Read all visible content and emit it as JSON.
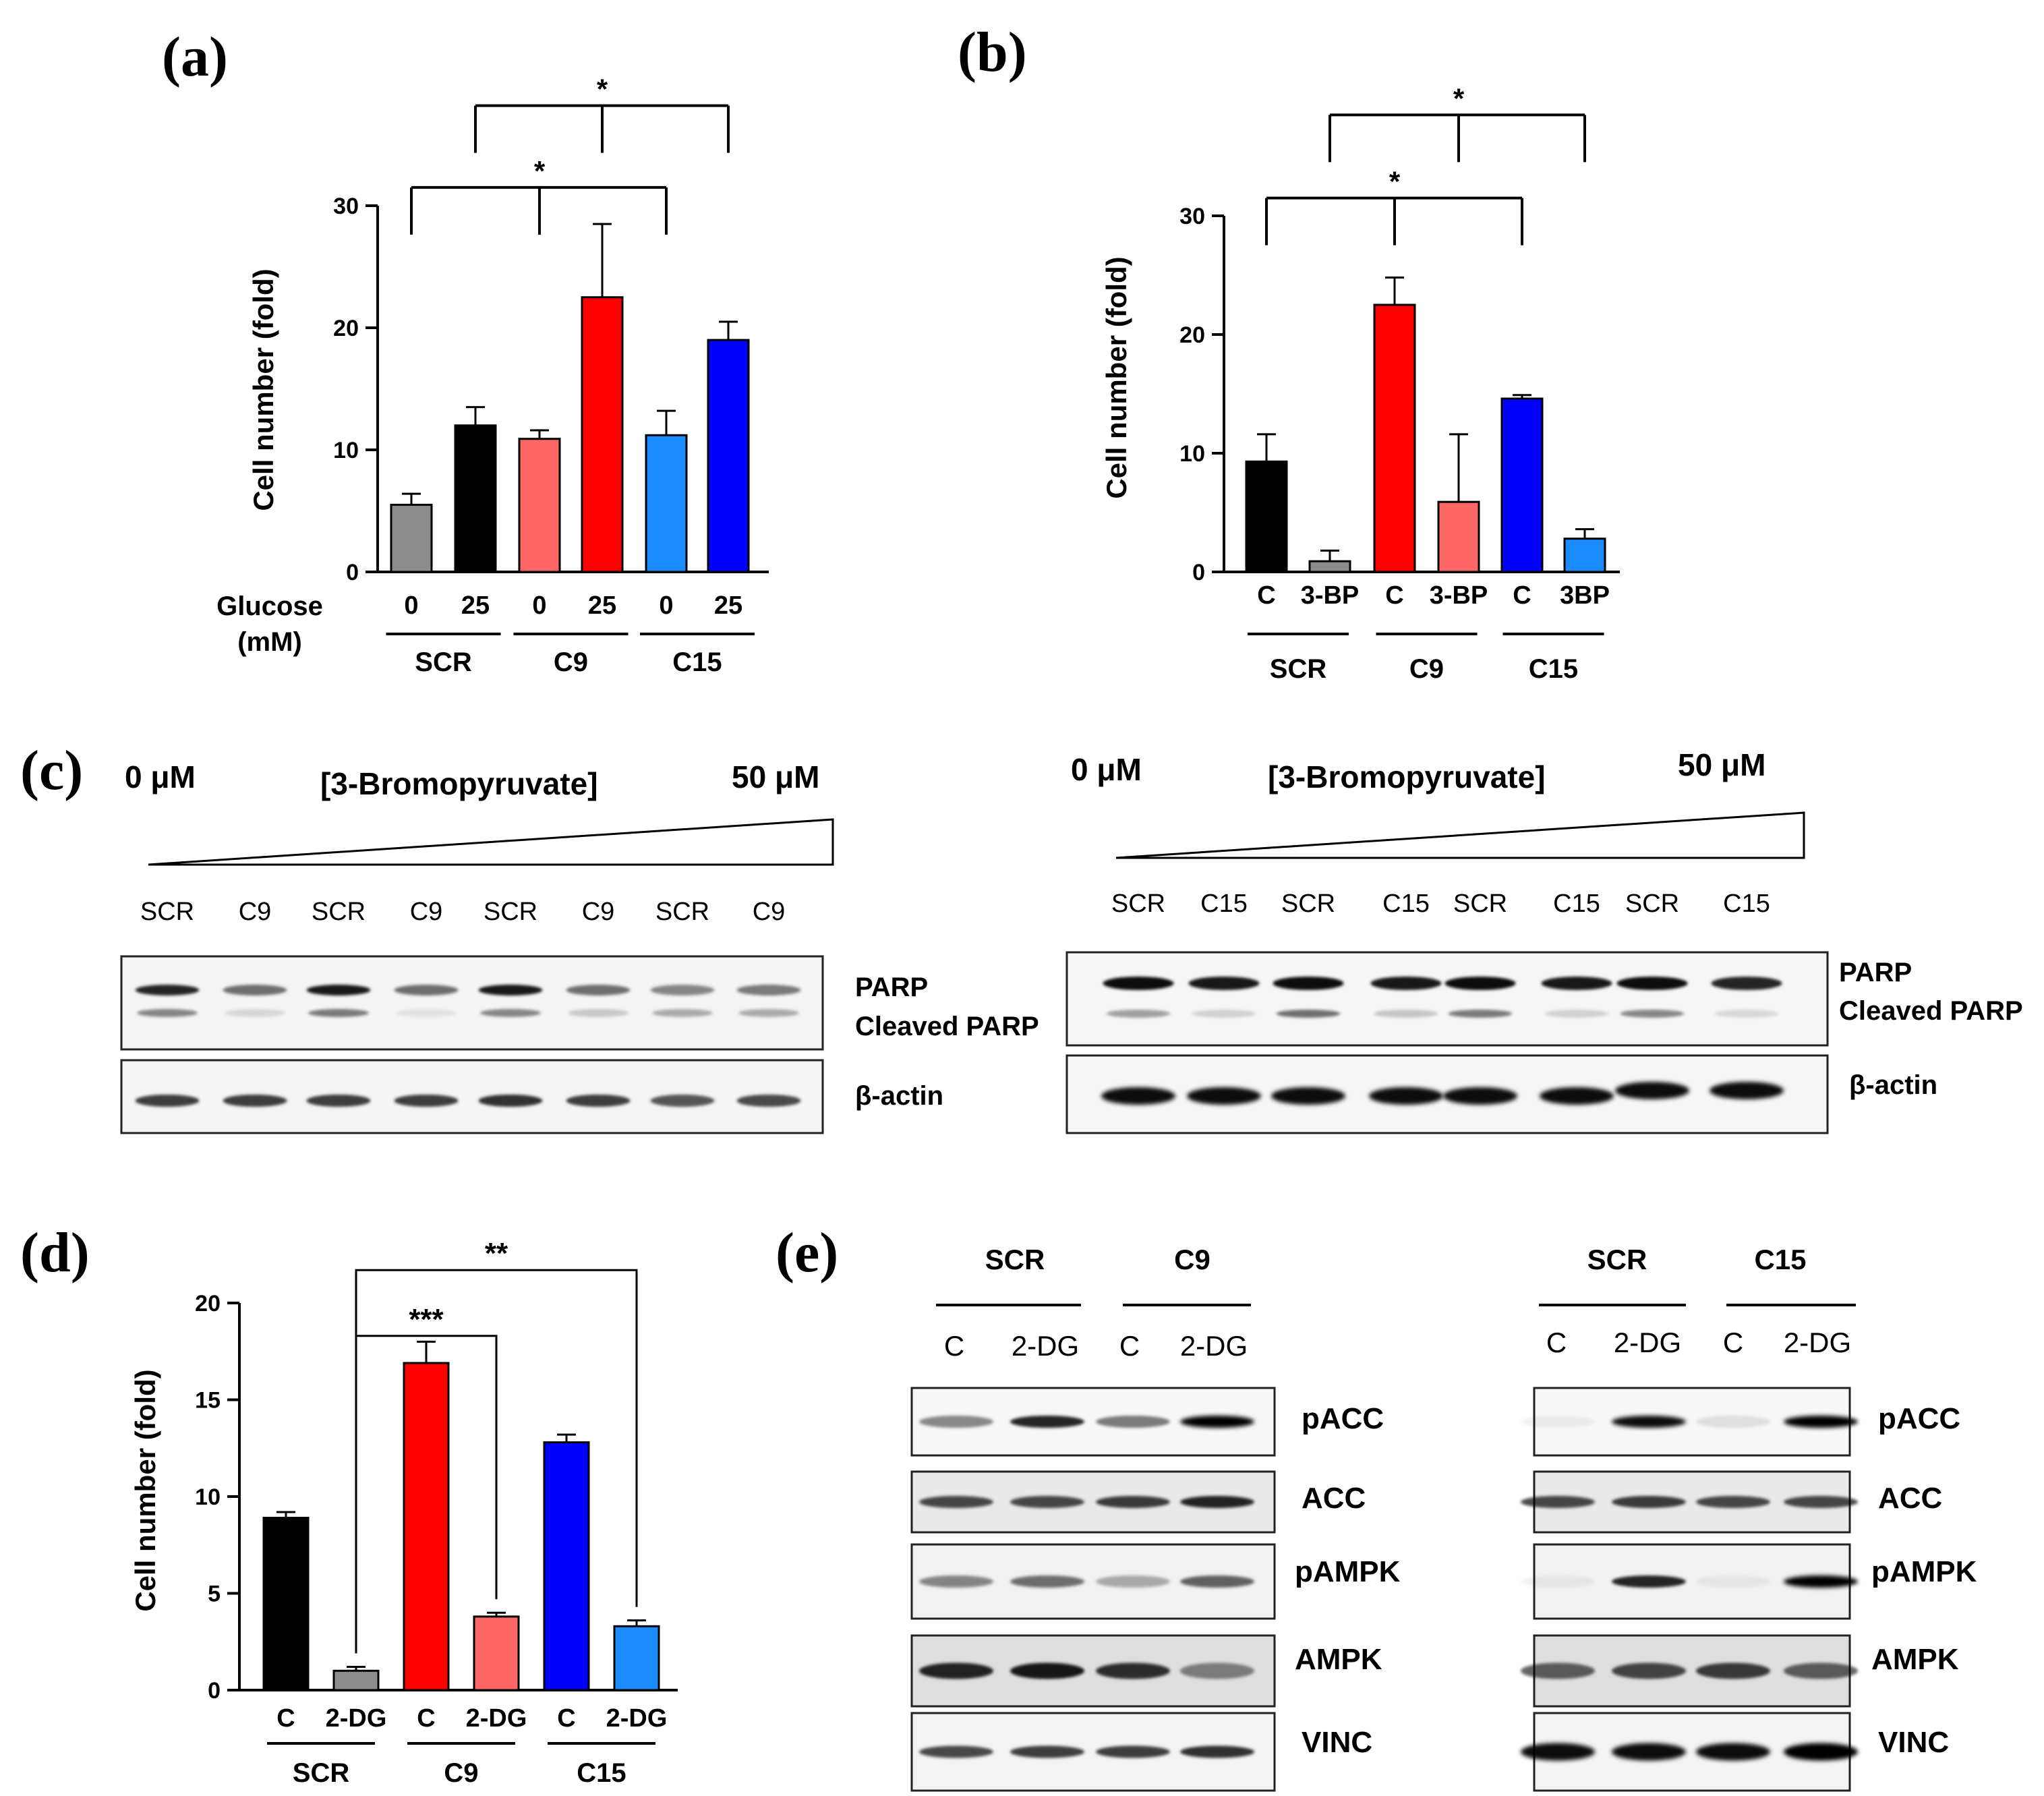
{
  "panel_labels": {
    "a": "(a)",
    "b": "(b)",
    "c": "(c)",
    "d": "(d)",
    "e": "(e)"
  },
  "colors": {
    "black": "#000000",
    "gray": "#8c8c8c",
    "red": "#ff0000",
    "salmon": "#ff6666",
    "blue": "#0000ff",
    "lightblue": "#1a8cff"
  },
  "chart_data": [
    {
      "id": "a",
      "type": "bar",
      "ylabel": "Cell number (fold)",
      "ylim": [
        0,
        30
      ],
      "yticks": [
        0,
        10,
        20,
        30
      ],
      "xaxis_title_line1": "Glucose",
      "xaxis_title_line2": "(mM)",
      "categories": [
        "0",
        "25",
        "0",
        "25",
        "0",
        "25"
      ],
      "values": [
        5.5,
        12.0,
        10.9,
        22.5,
        11.2,
        19.0
      ],
      "errors": [
        0.9,
        1.5,
        0.7,
        6.0,
        2.0,
        1.5
      ],
      "bar_colors": [
        "gray",
        "black",
        "salmon",
        "red",
        "lightblue",
        "blue"
      ],
      "groups": [
        {
          "label": "SCR",
          "from": 0,
          "to": 1
        },
        {
          "label": "C9",
          "from": 2,
          "to": 3
        },
        {
          "label": "C15",
          "from": 4,
          "to": 5
        }
      ],
      "significance": [
        {
          "label": "*",
          "bars": [
            0,
            2,
            4
          ],
          "y": 31.5
        },
        {
          "label": "*",
          "bars": [
            1,
            3,
            5
          ],
          "y": 38.2
        }
      ]
    },
    {
      "id": "b",
      "type": "bar",
      "ylabel": "Cell number (fold)",
      "ylim": [
        0,
        30
      ],
      "yticks": [
        0,
        10,
        20,
        30
      ],
      "categories": [
        "C",
        "3-BP",
        "C",
        "3-BP",
        "C",
        "3BP"
      ],
      "values": [
        9.3,
        0.9,
        22.5,
        5.9,
        14.6,
        2.8
      ],
      "errors": [
        2.3,
        0.9,
        2.3,
        5.7,
        0.3,
        0.8
      ],
      "bar_colors": [
        "black",
        "gray",
        "red",
        "salmon",
        "blue",
        "lightblue"
      ],
      "groups": [
        {
          "label": "SCR",
          "from": 0,
          "to": 1
        },
        {
          "label": "C9",
          "from": 2,
          "to": 3
        },
        {
          "label": "C15",
          "from": 4,
          "to": 5
        }
      ],
      "significance": [
        {
          "label": "*",
          "bars": [
            0,
            2,
            4
          ],
          "y": 31.5
        },
        {
          "label": "*",
          "bars": [
            1,
            3,
            5
          ],
          "y": 38.5
        }
      ]
    },
    {
      "id": "d",
      "type": "bar",
      "ylabel": "Cell number (fold)",
      "ylim": [
        0,
        20
      ],
      "yticks": [
        0,
        5,
        10,
        15,
        20
      ],
      "categories": [
        "C",
        "2-DG",
        "C",
        "2-DG",
        "C",
        "2-DG"
      ],
      "values": [
        8.9,
        1.0,
        16.9,
        3.8,
        12.8,
        3.3
      ],
      "errors": [
        0.3,
        0.2,
        1.1,
        0.2,
        0.4,
        0.3
      ],
      "bar_colors": [
        "black",
        "gray",
        "red",
        "salmon",
        "blue",
        "lightblue"
      ],
      "groups": [
        {
          "label": "SCR",
          "from": 0,
          "to": 1
        },
        {
          "label": "C9",
          "from": 2,
          "to": 3
        },
        {
          "label": "C15",
          "from": 4,
          "to": 5
        }
      ],
      "significance": [
        {
          "label": "***",
          "from": 1,
          "to": 3,
          "y": 18.3
        },
        {
          "label": "**",
          "from": 1,
          "to": 5,
          "y": 21.7
        }
      ]
    }
  ],
  "blots_c": [
    {
      "id": "c-left",
      "conc_low": "0 μM",
      "conc_title": "[3-Bromopyruvate]",
      "conc_high": "50 μM",
      "lanes": [
        "SCR",
        "C9",
        "SCR",
        "C9",
        "SCR",
        "C9",
        "SCR",
        "C9"
      ],
      "labels": [
        "PARP",
        "Cleaved PARP",
        "β-actin"
      ]
    },
    {
      "id": "c-right",
      "conc_low": "0 μM",
      "conc_title": "[3-Bromopyruvate]",
      "conc_high": "50 μM",
      "lanes": [
        "SCR",
        "C15",
        "SCR",
        "C15",
        "SCR",
        "C15",
        "SCR",
        "C15"
      ],
      "labels": [
        "PARP",
        "Cleaved PARP",
        "β-actin"
      ]
    }
  ],
  "blots_e": [
    {
      "id": "e-left",
      "groups": [
        "SCR",
        "C9"
      ],
      "lanes": [
        "C",
        "2-DG",
        "C",
        "2-DG"
      ],
      "proteins": [
        "pACC",
        "ACC",
        "pAMPK",
        "AMPK",
        "VINC"
      ]
    },
    {
      "id": "e-right",
      "groups": [
        "SCR",
        "C15"
      ],
      "lanes": [
        "C",
        "2-DG",
        "C",
        "2-DG"
      ],
      "proteins": [
        "pACC",
        "ACC",
        "pAMPK",
        "AMPK",
        "VINC"
      ]
    }
  ]
}
